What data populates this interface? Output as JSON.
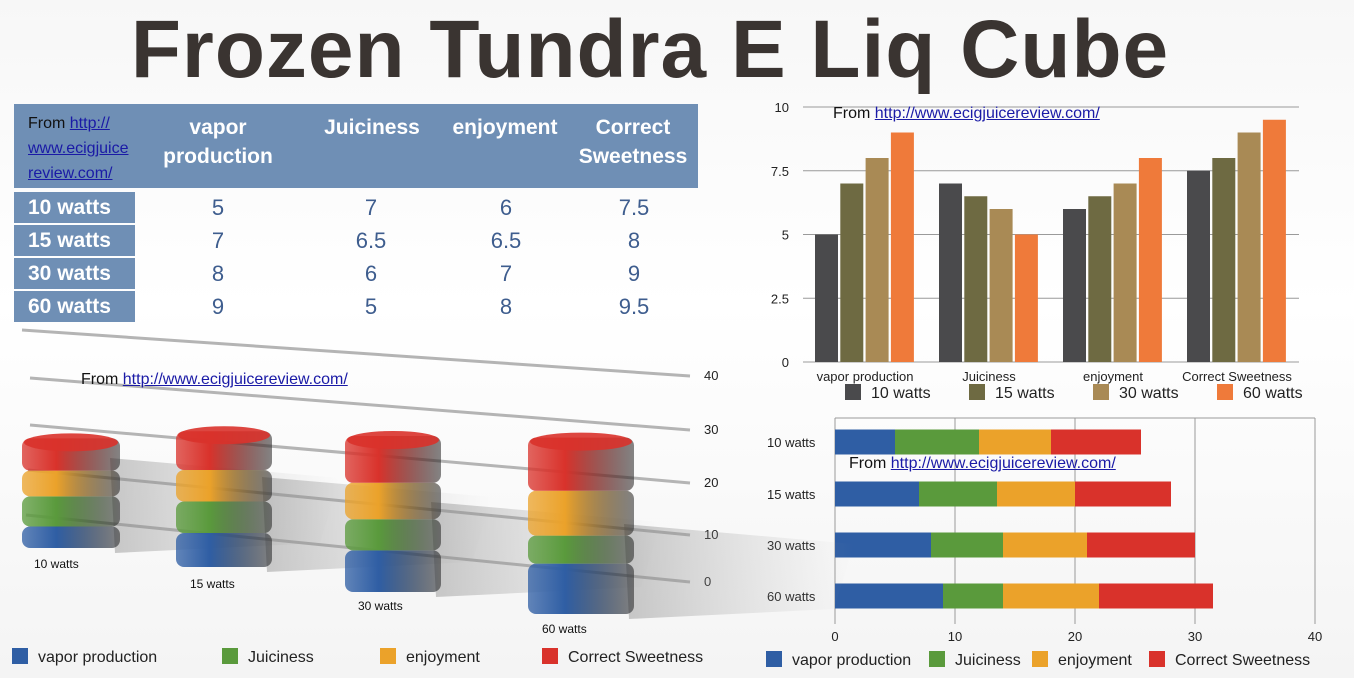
{
  "title": "Frozen Tundra E Liq Cube",
  "source": {
    "prefix": "From",
    "link": "http://www.ecigjuicereview.com/"
  },
  "table": {
    "source_prefix": "From",
    "source_link_lines": [
      "http://",
      "www.ecigjuice",
      "review.com/"
    ],
    "columns": [
      "vapor production",
      "Juiciness",
      "enjoyment",
      "Correct Sweetness"
    ],
    "column_lines": [
      [
        "vapor",
        "production"
      ],
      [
        "Juiciness"
      ],
      [
        "enjoyment"
      ],
      [
        "Correct",
        "Sweetness"
      ]
    ],
    "rows": [
      {
        "label": "10 watts",
        "values": [
          "5",
          "7",
          "6",
          "7.5"
        ]
      },
      {
        "label": "15 watts",
        "values": [
          "7",
          "6.5",
          "6.5",
          "8"
        ]
      },
      {
        "label": "30 watts",
        "values": [
          "8",
          "6",
          "7",
          "9"
        ]
      },
      {
        "label": "60 watts",
        "values": [
          "9",
          "5",
          "8",
          "9.5"
        ]
      }
    ]
  },
  "colors": {
    "watts": [
      "#4a4a4c",
      "#6e6a42",
      "#a98a55",
      "#ef7a3a"
    ],
    "metrics": [
      "#2f5ea4",
      "#5a9a3c",
      "#eba22a",
      "#d9322b"
    ],
    "table_header": "#6f8fb5",
    "table_values": "#3e5d8e"
  },
  "chart_data": [
    {
      "type": "bar",
      "categories": [
        "vapor production",
        "Juiciness",
        "enjoyment",
        "Correct Sweetness"
      ],
      "series": [
        {
          "name": "10 watts",
          "values": [
            5,
            7,
            6,
            7.5
          ]
        },
        {
          "name": "15 watts",
          "values": [
            7,
            6.5,
            6.5,
            8
          ]
        },
        {
          "name": "30 watts",
          "values": [
            8,
            6,
            7,
            9
          ]
        },
        {
          "name": "60 watts",
          "values": [
            9,
            5,
            8,
            9.5
          ]
        }
      ],
      "ylim": [
        0,
        10
      ],
      "yticks": [
        "0",
        "2.5",
        "5",
        "7.5",
        "10"
      ],
      "grid": true,
      "legend": "bottom",
      "annotation": "From http://www.ecigjuicereview.com/"
    },
    {
      "type": "bar",
      "orientation": "horizontal",
      "stacked": true,
      "categories": [
        "10 watts",
        "15 watts",
        "30 watts",
        "60 watts"
      ],
      "series": [
        {
          "name": "vapor production",
          "values": [
            5,
            7,
            8,
            9
          ]
        },
        {
          "name": "Juiciness",
          "values": [
            7,
            6.5,
            6,
            5
          ]
        },
        {
          "name": "enjoyment",
          "values": [
            6,
            6.5,
            7,
            8
          ]
        },
        {
          "name": "Correct Sweetness",
          "values": [
            7.5,
            8,
            9,
            9.5
          ]
        }
      ],
      "xlim": [
        0,
        40
      ],
      "xticks": [
        "0",
        "10",
        "20",
        "30",
        "40"
      ],
      "grid": true,
      "legend": "bottom",
      "annotation": "From http://www.ecigjuicereview.com/"
    },
    {
      "type": "bar",
      "style": "3d-stacked",
      "stacked": true,
      "categories": [
        "10 watts",
        "15 watts",
        "30 watts",
        "60 watts"
      ],
      "series": [
        {
          "name": "vapor production",
          "values": [
            5,
            7,
            8,
            9
          ]
        },
        {
          "name": "Juiciness",
          "values": [
            7,
            6.5,
            6,
            5
          ]
        },
        {
          "name": "enjoyment",
          "values": [
            6,
            6.5,
            7,
            8
          ]
        },
        {
          "name": "Correct Sweetness",
          "values": [
            7.5,
            8,
            9,
            9.5
          ]
        }
      ],
      "ylim": [
        0,
        40
      ],
      "yticks": [
        "0",
        "10",
        "20",
        "30",
        "40"
      ],
      "grid": true,
      "legend": "bottom",
      "annotation": "From http://www.ecigjuicereview.com/"
    }
  ]
}
